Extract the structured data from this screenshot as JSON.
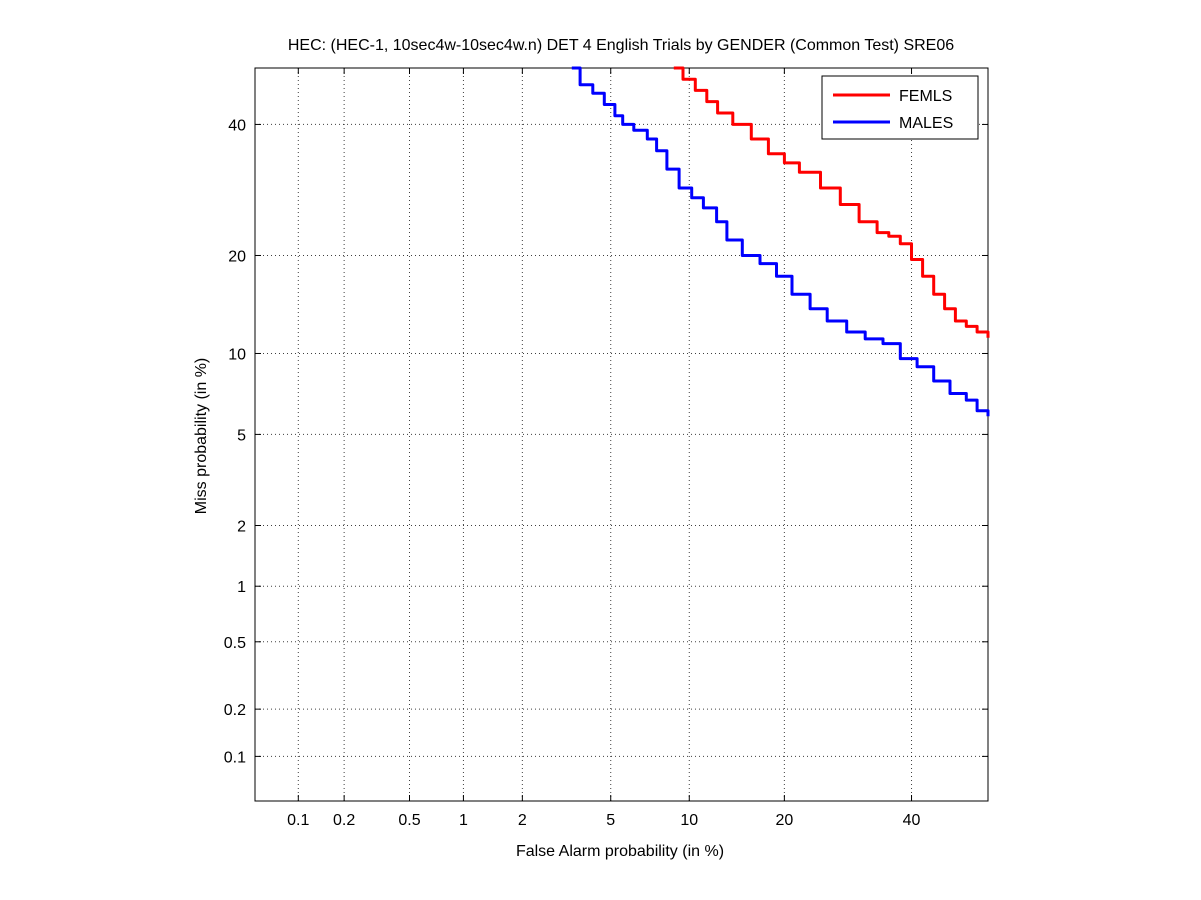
{
  "chart_data": {
    "type": "line",
    "title": "HEC: (HEC-1, 10sec4w-10sec4w.n) DET 4 English Trials by GENDER (Common Test) SRE06",
    "xlabel": "False Alarm probability (in %)",
    "ylabel": "Miss probability (in %)",
    "x_scale": "normal-deviate (probit)",
    "y_scale": "normal-deviate (probit)",
    "xlim": [
      0.05,
      54
    ],
    "ylim": [
      0.05,
      50
    ],
    "x_ticks": [
      0.1,
      0.2,
      0.5,
      1,
      2,
      5,
      10,
      20,
      40
    ],
    "x_tick_labels": [
      "0.1",
      "0.2",
      "0.5",
      "1",
      "2",
      "5",
      "10",
      "20",
      "40"
    ],
    "y_ticks": [
      0.1,
      0.2,
      0.5,
      1,
      2,
      5,
      10,
      20,
      40
    ],
    "y_tick_labels": [
      "0.1",
      "0.2",
      "0.5",
      "1",
      "2",
      "5",
      "10",
      "20",
      "40"
    ],
    "grid": true,
    "legend_position": "top-right",
    "series": [
      {
        "name": "FEMLS",
        "color": "#ff0000",
        "x": [
          8.8,
          9.5,
          10.5,
          11.5,
          12.5,
          14,
          16,
          18,
          20,
          22,
          25,
          28,
          31,
          34,
          36,
          38,
          40,
          42,
          44,
          46,
          48,
          50,
          52,
          54
        ],
        "y": [
          50,
          48,
          46,
          44,
          42,
          40,
          37.5,
          35,
          33.5,
          32,
          29.5,
          27,
          24.5,
          23,
          22.5,
          21.5,
          19.5,
          17.5,
          15.5,
          14,
          12.8,
          12.3,
          11.8,
          11.3
        ]
      },
      {
        "name": "MALES",
        "color": "#0000ff",
        "x": [
          3.4,
          3.7,
          4.2,
          4.7,
          5.2,
          5.6,
          6.2,
          7.0,
          7.6,
          8.3,
          9.2,
          10.2,
          11.2,
          12.4,
          13.4,
          15,
          17,
          19,
          21,
          23.5,
          26,
          29,
          32,
          35,
          38,
          41,
          44,
          47,
          50,
          52,
          54
        ],
        "y": [
          50,
          47,
          45.5,
          43.5,
          41.5,
          40,
          39,
          37.5,
          35.5,
          32.5,
          29.5,
          28,
          26.5,
          24.5,
          22,
          20,
          19,
          17.5,
          15.5,
          14,
          12.8,
          11.8,
          11.2,
          10.8,
          9.6,
          9.0,
          8.0,
          7.2,
          6.8,
          6.2,
          5.9
        ]
      }
    ]
  }
}
